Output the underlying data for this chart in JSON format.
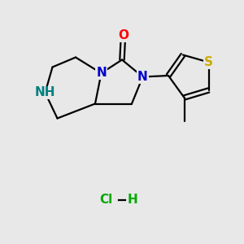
{
  "bg_color": "#e8e8e8",
  "bond_color": "#000000",
  "bond_width": 1.6,
  "atom_colors": {
    "O": "#ff0000",
    "N": "#0000cc",
    "NH": "#008080",
    "S": "#ccaa00",
    "Cl": "#00aa00",
    "H_hcl": "#00aa00"
  },
  "font_size_atom": 11,
  "font_size_hcl": 11,
  "figsize": [
    3.0,
    3.0
  ],
  "dpi": 100
}
